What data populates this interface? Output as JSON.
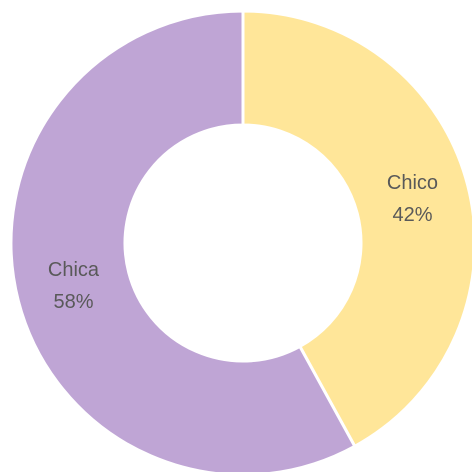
{
  "chart_data": {
    "type": "pie",
    "donut": true,
    "categories": [
      "Chico",
      "Chica"
    ],
    "values": [
      42,
      58
    ],
    "value_labels": [
      "42%",
      "58%"
    ],
    "colors": [
      "#ffe699",
      "#bfa5d5"
    ]
  }
}
